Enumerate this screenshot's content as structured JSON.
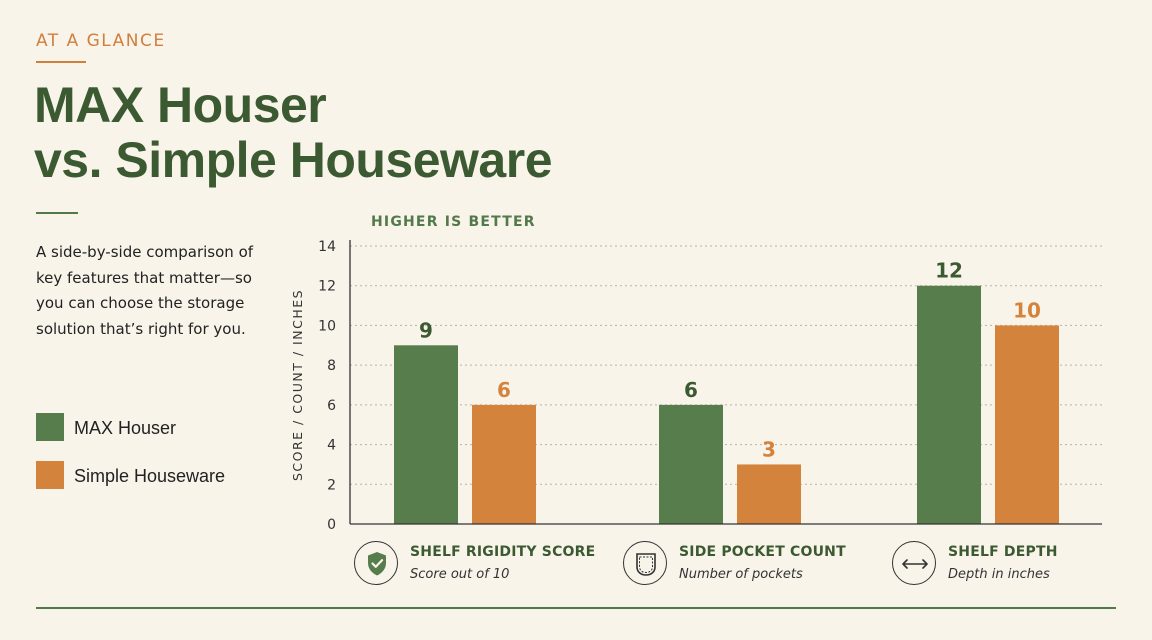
{
  "header": {
    "eyebrow": "AT A GLANCE",
    "title_line1": "MAX Houser",
    "title_line2": "vs. Simple Houseware",
    "description": "A side-by-side comparison of key features that matter—so you can choose the storage solution that’s right for you."
  },
  "colors": {
    "max_houser": "#577d4d",
    "simple_houseware": "#d4833d",
    "accent_orange": "#d17f3c",
    "title_green": "#3c5a32",
    "background": "#f9f4ea"
  },
  "legend": [
    {
      "label": "MAX Houser",
      "color": "#577d4d"
    },
    {
      "label": "Simple Houseware",
      "color": "#d4833d"
    }
  ],
  "chart_data": {
    "type": "bar",
    "subtitle": "HIGHER IS BETTER",
    "ylabel": "SCORE / COUNT / INCHES",
    "ylim": [
      0,
      14
    ],
    "yticks": [
      0,
      2,
      4,
      6,
      8,
      10,
      12,
      14
    ],
    "grid": true,
    "categories": [
      "SHELF RIGIDITY SCORE",
      "SIDE POCKET COUNT",
      "SHELF DEPTH"
    ],
    "category_subtitles": [
      "Score out of 10",
      "Number of pockets",
      "Depth in inches"
    ],
    "category_icons": [
      "shield-check-icon",
      "pocket-icon",
      "double-arrow-icon"
    ],
    "series": [
      {
        "name": "MAX Houser",
        "values": [
          9,
          6,
          12
        ],
        "color": "#577d4d"
      },
      {
        "name": "Simple Houseware",
        "values": [
          6,
          3,
          10
        ],
        "color": "#d4833d"
      }
    ]
  }
}
